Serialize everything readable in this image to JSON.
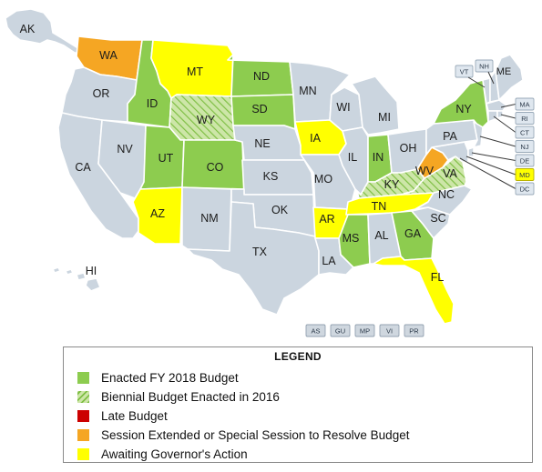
{
  "colors": {
    "enacted": "#8dcc4f",
    "biennial_bg": "#cde6a8",
    "biennial_line": "#7fbf45",
    "late": "#cc0000",
    "extended": "#f5a623",
    "awaiting": "#ffff00",
    "none": "#cbd5df"
  },
  "states": {
    "AK": {
      "label": "AK",
      "status": "none"
    },
    "HI": {
      "label": "HI",
      "status": "none"
    },
    "WA": {
      "label": "WA",
      "status": "extended"
    },
    "OR": {
      "label": "OR",
      "status": "none"
    },
    "CA": {
      "label": "CA",
      "status": "none"
    },
    "ID": {
      "label": "ID",
      "status": "enacted"
    },
    "NV": {
      "label": "NV",
      "status": "none"
    },
    "MT": {
      "label": "MT",
      "status": "awaiting"
    },
    "WY": {
      "label": "WY",
      "status": "biennial"
    },
    "UT": {
      "label": "UT",
      "status": "enacted"
    },
    "CO": {
      "label": "CO",
      "status": "enacted"
    },
    "AZ": {
      "label": "AZ",
      "status": "awaiting"
    },
    "NM": {
      "label": "NM",
      "status": "none"
    },
    "ND": {
      "label": "ND",
      "status": "enacted"
    },
    "SD": {
      "label": "SD",
      "status": "enacted"
    },
    "NE": {
      "label": "NE",
      "status": "none"
    },
    "KS": {
      "label": "KS",
      "status": "none"
    },
    "OK": {
      "label": "OK",
      "status": "none"
    },
    "TX": {
      "label": "TX",
      "status": "none"
    },
    "MN": {
      "label": "MN",
      "status": "none"
    },
    "IA": {
      "label": "IA",
      "status": "awaiting"
    },
    "MO": {
      "label": "MO",
      "status": "none"
    },
    "AR": {
      "label": "AR",
      "status": "awaiting"
    },
    "LA": {
      "label": "LA",
      "status": "none"
    },
    "WI": {
      "label": "WI",
      "status": "none"
    },
    "IL": {
      "label": "IL",
      "status": "none"
    },
    "MI": {
      "label": "MI",
      "status": "none"
    },
    "IN": {
      "label": "IN",
      "status": "enacted"
    },
    "OH": {
      "label": "OH",
      "status": "none"
    },
    "KY": {
      "label": "KY",
      "status": "biennial"
    },
    "TN": {
      "label": "TN",
      "status": "awaiting"
    },
    "MS": {
      "label": "MS",
      "status": "enacted"
    },
    "AL": {
      "label": "AL",
      "status": "none"
    },
    "GA": {
      "label": "GA",
      "status": "enacted"
    },
    "FL": {
      "label": "FL",
      "status": "awaiting"
    },
    "SC": {
      "label": "SC",
      "status": "none"
    },
    "NC": {
      "label": "NC",
      "status": "none"
    },
    "VA": {
      "label": "VA",
      "status": "biennial"
    },
    "WV": {
      "label": "WV",
      "status": "extended"
    },
    "PA": {
      "label": "PA",
      "status": "none"
    },
    "NY": {
      "label": "NY",
      "status": "enacted"
    },
    "ME": {
      "label": "ME",
      "status": "none"
    },
    "NH": {
      "label": "NH",
      "status": "none"
    },
    "VT": {
      "label": "VT",
      "status": "none"
    }
  },
  "east_boxes": [
    {
      "code": "MA",
      "status": "none"
    },
    {
      "code": "RI",
      "status": "none"
    },
    {
      "code": "CT",
      "status": "none"
    },
    {
      "code": "NJ",
      "status": "none"
    },
    {
      "code": "DE",
      "status": "none"
    },
    {
      "code": "MD",
      "status": "awaiting"
    },
    {
      "code": "DC",
      "status": "none"
    }
  ],
  "territories": [
    "AS",
    "GU",
    "MP",
    "VI",
    "PR"
  ],
  "legend": {
    "title": "LEGEND",
    "items": [
      {
        "label": "Enacted FY 2018 Budget",
        "status": "enacted"
      },
      {
        "label": "Biennial Budget Enacted in 2016",
        "status": "biennial"
      },
      {
        "label": "Late Budget",
        "status": "late"
      },
      {
        "label": "Session Extended or Special Session to Resolve Budget",
        "status": "extended"
      },
      {
        "label": "Awaiting Governor's Action",
        "status": "awaiting"
      }
    ]
  }
}
